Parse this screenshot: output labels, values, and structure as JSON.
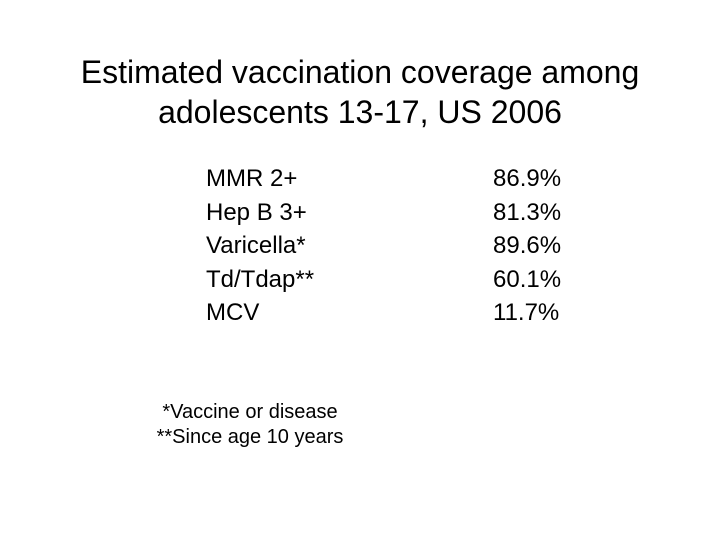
{
  "slide": {
    "title_line1": "Estimated vaccination coverage among",
    "title_line2": "adolescents 13-17, US 2006",
    "rows": [
      {
        "vaccine": "MMR 2+",
        "coverage": "86.9%"
      },
      {
        "vaccine": "Hep B 3+",
        "coverage": "81.3%"
      },
      {
        "vaccine": "Varicella*",
        "coverage": "89.6%"
      },
      {
        "vaccine": "Td/Tdap**",
        "coverage": "60.1%"
      },
      {
        "vaccine": "MCV",
        "coverage": "11.7%"
      }
    ],
    "footnotes": [
      "*Vaccine or disease",
      "**Since age 10 years"
    ]
  }
}
